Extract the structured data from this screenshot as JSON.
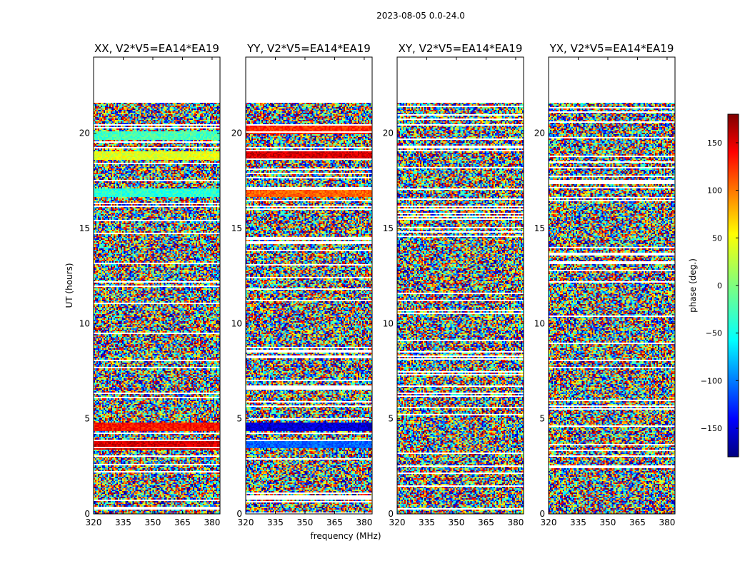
{
  "figure_title": "2023-08-05 0.0-24.0",
  "chart_data": {
    "type": "heatmap",
    "title": "2023-08-05 0.0-24.0",
    "xlabel": "frequency (MHz)",
    "ylabel": "UT (hours)",
    "xlim": [
      320,
      384
    ],
    "ylim": [
      0,
      24
    ],
    "xticks": [
      "320",
      "335",
      "350",
      "365",
      "380"
    ],
    "yticks": [
      "0",
      "5",
      "10",
      "15",
      "20"
    ],
    "data_extent_hours": [
      0,
      21.6
    ],
    "panels": [
      {
        "title": "XX, V2*V5=EA14*EA19",
        "coherent_bands": [
          {
            "hour": 18.8,
            "phase": 35
          },
          {
            "hour": 19.9,
            "phase": -20
          },
          {
            "hour": 16.9,
            "phase": -30
          },
          {
            "hour": 4.6,
            "phase": 130
          },
          {
            "hour": 3.6,
            "phase": 150
          }
        ]
      },
      {
        "title": "YY, V2*V5=EA14*EA19",
        "coherent_bands": [
          {
            "hour": 18.9,
            "phase": 150
          },
          {
            "hour": 20.2,
            "phase": 120
          },
          {
            "hour": 16.9,
            "phase": 100
          },
          {
            "hour": 4.6,
            "phase": -150
          },
          {
            "hour": 3.7,
            "phase": -100
          }
        ]
      },
      {
        "title": "XY, V2*V5=EA14*EA19",
        "coherent_bands": []
      },
      {
        "title": "YX, V2*V5=EA14*EA19",
        "coherent_bands": []
      }
    ],
    "colorbar": {
      "label": "phase (deg.)",
      "range": [
        -180,
        180
      ],
      "ticks": [
        "150",
        "100",
        "50",
        "0",
        "−50",
        "−100",
        "−150"
      ],
      "colormap": "jet"
    }
  }
}
